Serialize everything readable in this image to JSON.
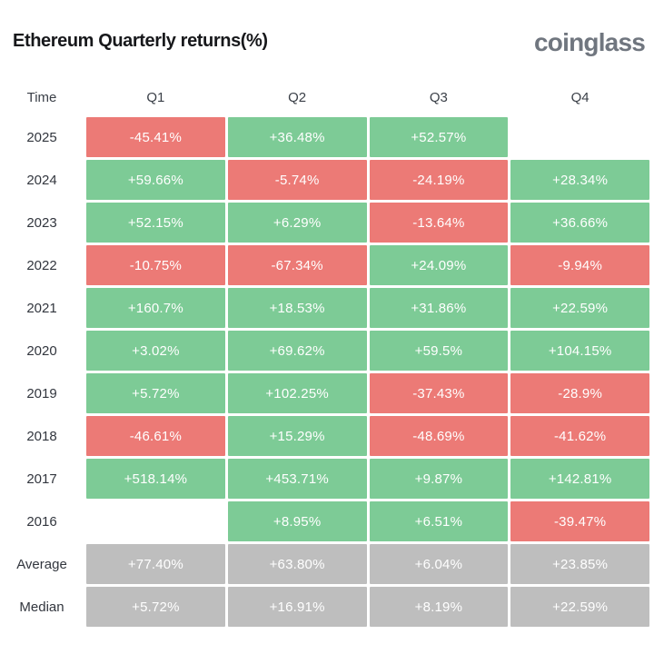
{
  "header": {
    "title": "Ethereum Quarterly returns(%)",
    "brand": "coinglass"
  },
  "colors": {
    "positive": "#7dcb96",
    "negative": "#ec7a76",
    "neutral": "#bebebe",
    "title_text": "#17181b",
    "brand_text": "#70767f",
    "label_text": "#32363e",
    "cell_text": "#ffffff"
  },
  "chart_data": {
    "type": "heatmap",
    "title": "Ethereum Quarterly returns(%)",
    "columns": [
      "Time",
      "Q1",
      "Q2",
      "Q3",
      "Q4"
    ],
    "rows": [
      {
        "label": "2025",
        "kind": "year",
        "values": [
          "-45.41%",
          "+36.48%",
          "+52.57%",
          ""
        ]
      },
      {
        "label": "2024",
        "kind": "year",
        "values": [
          "+59.66%",
          "-5.74%",
          "-24.19%",
          "+28.34%"
        ]
      },
      {
        "label": "2023",
        "kind": "year",
        "values": [
          "+52.15%",
          "+6.29%",
          "-13.64%",
          "+36.66%"
        ]
      },
      {
        "label": "2022",
        "kind": "year",
        "values": [
          "-10.75%",
          "-67.34%",
          "+24.09%",
          "-9.94%"
        ]
      },
      {
        "label": "2021",
        "kind": "year",
        "values": [
          "+160.7%",
          "+18.53%",
          "+31.86%",
          "+22.59%"
        ]
      },
      {
        "label": "2020",
        "kind": "year",
        "values": [
          "+3.02%",
          "+69.62%",
          "+59.5%",
          "+104.15%"
        ]
      },
      {
        "label": "2019",
        "kind": "year",
        "values": [
          "+5.72%",
          "+102.25%",
          "-37.43%",
          "-28.9%"
        ]
      },
      {
        "label": "2018",
        "kind": "year",
        "values": [
          "-46.61%",
          "+15.29%",
          "-48.69%",
          "-41.62%"
        ]
      },
      {
        "label": "2017",
        "kind": "year",
        "values": [
          "+518.14%",
          "+453.71%",
          "+9.87%",
          "+142.81%"
        ]
      },
      {
        "label": "2016",
        "kind": "year",
        "values": [
          "",
          "+8.95%",
          "+6.51%",
          "-39.47%"
        ]
      },
      {
        "label": "Average",
        "kind": "summary",
        "values": [
          "+77.40%",
          "+63.80%",
          "+6.04%",
          "+23.85%"
        ]
      },
      {
        "label": "Median",
        "kind": "summary",
        "values": [
          "+5.72%",
          "+16.91%",
          "+8.19%",
          "+22.59%"
        ]
      }
    ]
  }
}
